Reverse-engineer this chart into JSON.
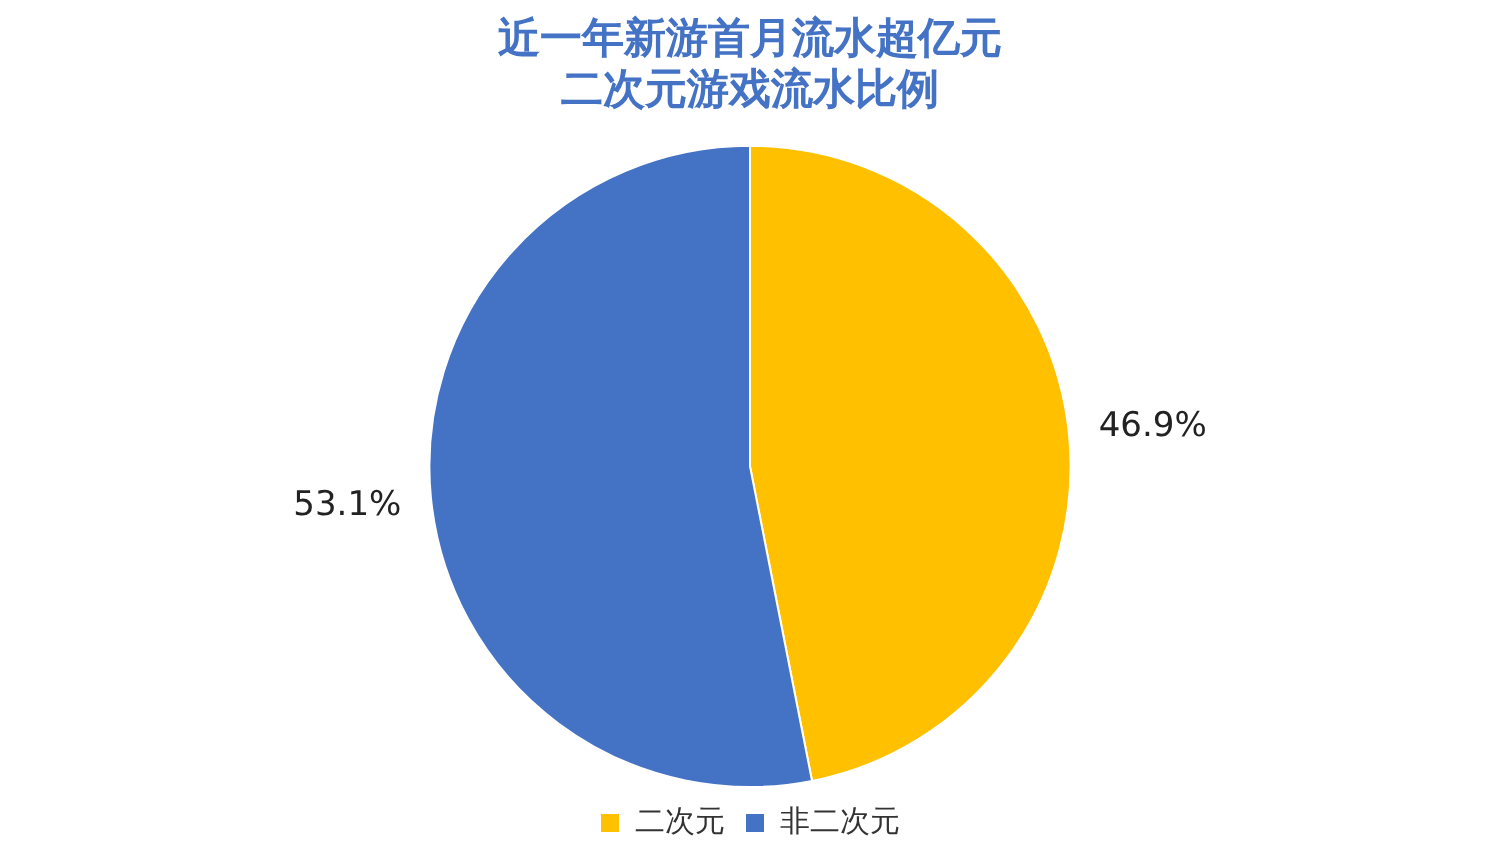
{
  "chart_data": {
    "type": "pie",
    "title": "近一年新游首月流水超亿元二次元游戏流水比例",
    "categories": [
      "二次元",
      "非二次元"
    ],
    "values": [
      46.9,
      53.1
    ],
    "colors": [
      "#ffc000",
      "#4472c4"
    ],
    "value_labels": [
      "46.9%",
      "53.1%"
    ],
    "legend": "bottom"
  }
}
